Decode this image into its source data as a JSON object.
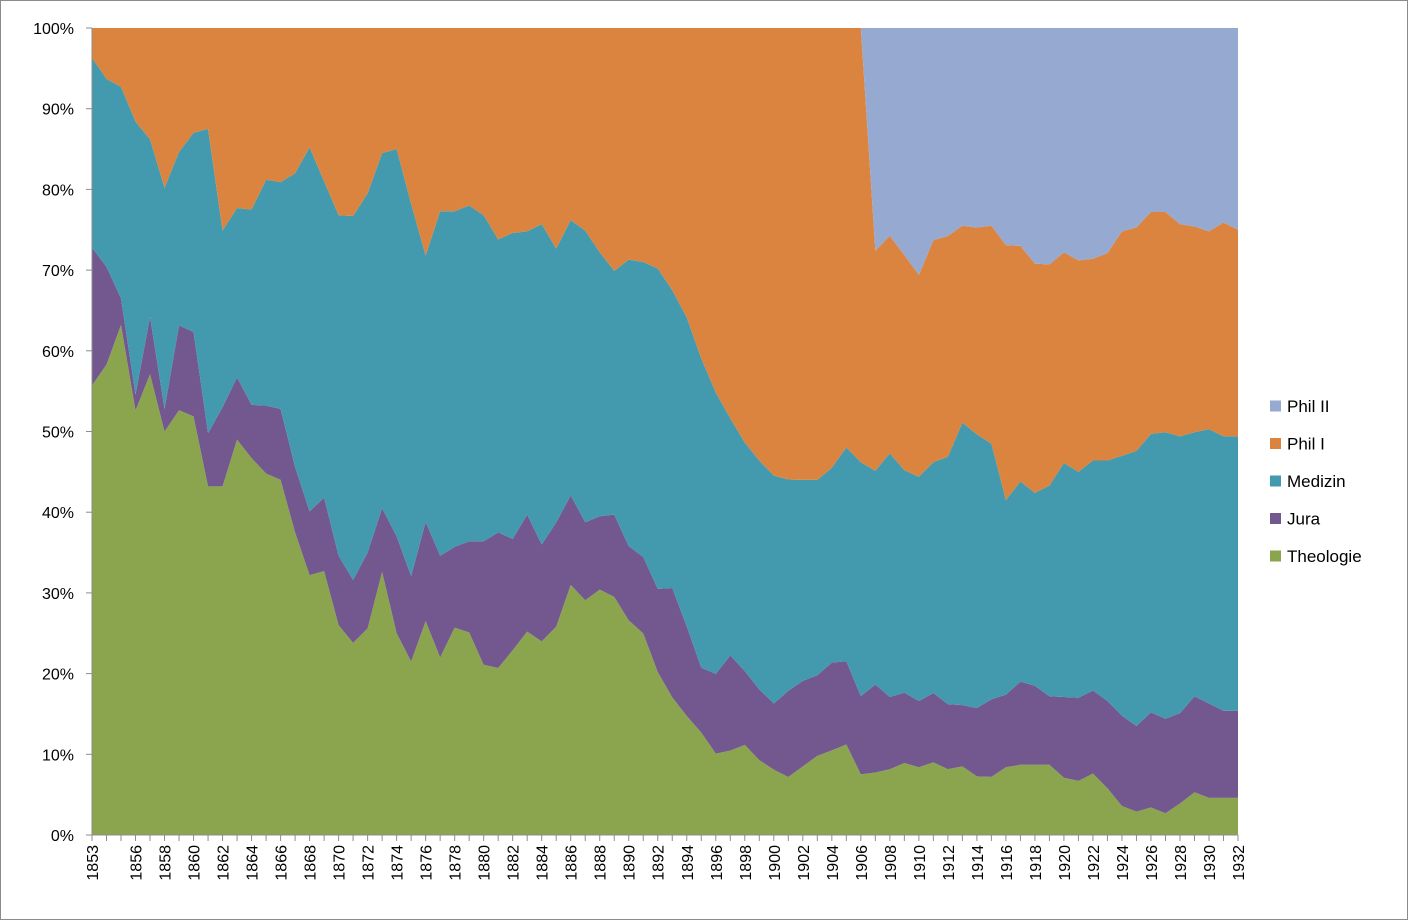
{
  "chart_data": {
    "type": "area",
    "stacked": "percent",
    "title": "",
    "xlabel": "",
    "ylabel": "",
    "ylim": [
      0,
      100
    ],
    "y_ticks": [
      "0%",
      "10%",
      "20%",
      "30%",
      "40%",
      "50%",
      "60%",
      "70%",
      "80%",
      "90%",
      "100%"
    ],
    "grid": false,
    "legend_position": "right",
    "x": [
      1853,
      1854,
      1855,
      1856,
      1857,
      1858,
      1859,
      1860,
      1861,
      1862,
      1863,
      1864,
      1865,
      1866,
      1867,
      1868,
      1869,
      1870,
      1871,
      1872,
      1873,
      1874,
      1875,
      1876,
      1877,
      1878,
      1879,
      1880,
      1881,
      1882,
      1883,
      1884,
      1885,
      1886,
      1887,
      1888,
      1889,
      1890,
      1891,
      1892,
      1893,
      1894,
      1895,
      1896,
      1897,
      1898,
      1899,
      1900,
      1901,
      1902,
      1903,
      1904,
      1905,
      1906,
      1907,
      1908,
      1909,
      1910,
      1911,
      1912,
      1913,
      1914,
      1915,
      1916,
      1917,
      1918,
      1919,
      1920,
      1921,
      1922,
      1923,
      1924,
      1925,
      1926,
      1927,
      1928,
      1929,
      1930,
      1931,
      1932
    ],
    "x_tick_labels": [
      "1853",
      "1856",
      "1858",
      "1860",
      "1862",
      "1864",
      "1866",
      "1868",
      "1870",
      "1872",
      "1874",
      "1876",
      "1878",
      "1880",
      "1882",
      "1884",
      "1886",
      "1888",
      "1890",
      "1892",
      "1894",
      "1896",
      "1898",
      "1900",
      "1902",
      "1904",
      "1906",
      "1908",
      "1910",
      "1912",
      "1914",
      "1916",
      "1918",
      "1920",
      "1922",
      "1924",
      "1926",
      "1928",
      "1930",
      "1932"
    ],
    "series": [
      {
        "name": "Theologie",
        "color": "#8ba54e",
        "values": [
          55.7,
          58.3,
          63.2,
          52.6,
          57.1,
          50.0,
          50.0,
          51.1,
          43.2,
          43.2,
          49.0,
          46.7,
          44.8,
          44.0,
          37.5,
          32.2,
          32.7,
          26.0,
          23.8,
          25.6,
          32.6,
          25.0,
          21.5,
          26.5,
          22.0,
          25.7,
          25.1,
          21.1,
          20.7,
          22.9,
          25.2,
          24.0,
          27.0,
          31.0,
          27.7,
          30.4,
          29.5,
          26.6,
          24.8,
          20.2,
          17.1,
          14.1,
          12.0,
          9.8,
          10.0,
          11.0,
          9.0,
          8.0,
          7.2,
          8.5,
          9.8,
          10.5,
          11.3,
          7.2,
          7.8,
          8.1,
          9.1,
          8.4,
          9.0,
          8.2,
          8.5,
          7.2,
          7.2,
          8.4,
          8.7,
          8.7,
          8.7,
          7.1,
          6.7,
          7.6,
          5.8,
          3.6,
          2.9,
          3.4,
          2.7,
          3.9,
          5.3,
          4.6,
          4.6,
          4.6
        ]
      },
      {
        "name": "Jura",
        "color": "#72588f",
        "values": [
          17.1,
          12.1,
          3.3,
          2.0,
          7.1,
          2.8,
          10.0,
          10.3,
          6.6,
          9.8,
          7.7,
          6.6,
          8.4,
          8.8,
          8.1,
          7.9,
          9.1,
          8.6,
          7.8,
          9.4,
          7.9,
          12.0,
          10.6,
          12.3,
          12.6,
          10.0,
          11.3,
          15.3,
          16.8,
          13.8,
          14.5,
          12.0,
          13.5,
          11.1,
          9.2,
          9.1,
          10.2,
          9.2,
          9.4,
          10.3,
          13.6,
          10.6,
          7.6,
          9.6,
          11.3,
          9.0,
          8.5,
          8.1,
          10.7,
          10.6,
          10.0,
          10.9,
          10.4,
          9.3,
          11.0,
          8.9,
          8.9,
          8.2,
          8.6,
          8.1,
          7.6,
          8.4,
          9.6,
          9.0,
          10.3,
          9.8,
          8.5,
          10.0,
          10.3,
          10.3,
          10.8,
          11.2,
          10.6,
          11.8,
          11.7,
          11.2,
          11.9,
          11.7,
          10.8,
          10.8
        ]
      },
      {
        "name": "Medizin",
        "color": "#4399ae",
        "values": [
          23.5,
          23.3,
          26.2,
          33.8,
          22.0,
          27.4,
          20.4,
          24.3,
          37.7,
          21.9,
          21.0,
          24.2,
          28.0,
          28.1,
          36.4,
          45.1,
          39.2,
          42.2,
          45.1,
          44.5,
          44.0,
          48.0,
          46.1,
          33.0,
          42.7,
          41.6,
          41.6,
          40.4,
          36.3,
          37.9,
          35.1,
          39.7,
          35.5,
          34.1,
          34.4,
          32.7,
          30.2,
          35.5,
          36.3,
          39.7,
          37.0,
          36.6,
          36.2,
          33.9,
          28.1,
          27.9,
          27.5,
          27.9,
          26.2,
          24.9,
          24.2,
          24.2,
          26.7,
          27.8,
          26.7,
          30.0,
          28.1,
          27.8,
          28.6,
          30.8,
          35.0,
          33.6,
          31.7,
          24.1,
          24.8,
          23.9,
          26.1,
          29.0,
          28.0,
          28.5,
          29.8,
          32.2,
          34.1,
          34.5,
          35.5,
          34.3,
          32.7,
          34.0,
          34.0,
          34.0
        ]
      },
      {
        "name": "Phil I",
        "color": "#db843f",
        "values": [
          3.7,
          6.3,
          7.3,
          11.6,
          13.8,
          19.8,
          14.6,
          12.8,
          12.5,
          25.1,
          22.3,
          22.5,
          18.8,
          19.1,
          18.0,
          14.8,
          19.0,
          23.2,
          23.3,
          20.5,
          15.5,
          15.0,
          21.8,
          28.2,
          22.7,
          22.7,
          22.0,
          23.2,
          26.2,
          25.4,
          25.2,
          24.3,
          28.6,
          23.8,
          23.9,
          27.8,
          30.1,
          28.7,
          28.8,
          29.8,
          32.6,
          34.3,
          38.7,
          43.9,
          46.3,
          50.6,
          52.0,
          54.8,
          56.0,
          56.0,
          56.0,
          54.6,
          52.4,
          51.6,
          27.5,
          26.8,
          27.2,
          25.0,
          27.5,
          27.5,
          24.4,
          25.4,
          27.0,
          31.6,
          29.2,
          28.4,
          27.4,
          26.1,
          26.2,
          25.0,
          25.7,
          27.8,
          27.7,
          27.5,
          27.3,
          26.3,
          25.5,
          24.5,
          26.5,
          25.6
        ]
      },
      {
        "name": "Phil II",
        "color": "#96a9d0",
        "values": [
          0,
          0,
          0,
          0,
          0,
          0,
          0,
          0,
          0,
          0,
          0,
          0,
          0,
          0,
          0,
          0,
          0,
          0,
          0,
          0,
          0,
          0,
          0,
          0,
          0,
          0,
          0,
          0,
          0,
          0,
          0,
          0,
          0,
          0,
          0,
          0,
          0,
          0,
          0,
          0,
          0,
          0,
          0,
          0,
          0,
          0,
          0,
          0,
          0,
          0,
          0,
          0,
          0,
          0,
          27.8,
          25.6,
          28.7,
          30.6,
          26.3,
          25.9,
          24.5,
          24.5,
          24.5,
          26.9,
          27.0,
          29.2,
          29.3,
          27.8,
          28.8,
          28.6,
          27.9,
          25.2,
          24.7,
          22.8,
          22.8,
          24.3,
          24.6,
          25.2,
          24.1,
          25.0
        ]
      }
    ]
  }
}
